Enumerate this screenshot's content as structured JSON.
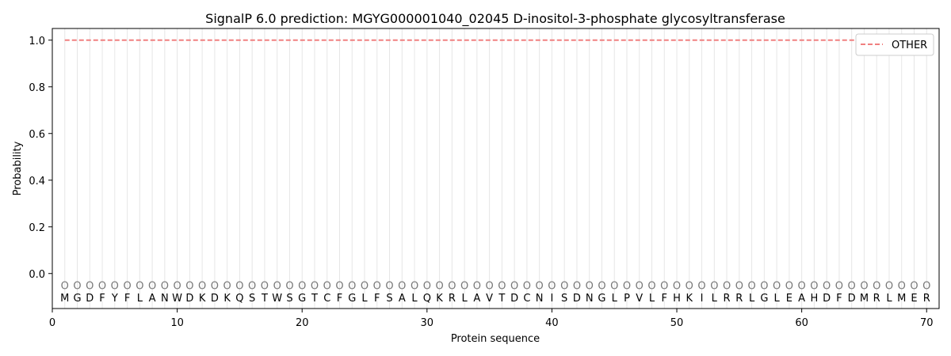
{
  "chart_data": {
    "type": "line",
    "title": "SignalP 6.0 prediction: MGYG000001040_02045 D-inositol-3-phosphate glycosyltransferase",
    "xlabel": "Protein sequence",
    "ylabel": "Probability",
    "xlim": [
      0,
      71
    ],
    "ylim": [
      -0.15,
      1.05
    ],
    "xticks": [
      0,
      10,
      20,
      30,
      40,
      50,
      60,
      70
    ],
    "yticks": [
      0.0,
      0.2,
      0.4,
      0.6,
      0.8,
      1.0
    ],
    "ytick_labels": [
      "0.0",
      "0.2",
      "0.4",
      "0.6",
      "0.8",
      "1.0"
    ],
    "sequence": [
      "M",
      "G",
      "D",
      "F",
      "Y",
      "F",
      "L",
      "A",
      "N",
      "W",
      "D",
      "K",
      "D",
      "K",
      "Q",
      "S",
      "T",
      "W",
      "S",
      "G",
      "T",
      "C",
      "F",
      "G",
      "L",
      "F",
      "S",
      "A",
      "L",
      "Q",
      "K",
      "R",
      "L",
      "A",
      "V",
      "T",
      "D",
      "C",
      "N",
      "I",
      "S",
      "D",
      "N",
      "G",
      "L",
      "P",
      "V",
      "L",
      "F",
      "H",
      "K",
      "I",
      "L",
      "R",
      "R",
      "L",
      "G",
      "L",
      "E",
      "A",
      "H",
      "D",
      "F",
      "D",
      "M",
      "R",
      "L",
      "M",
      "E",
      "R"
    ],
    "region_label": "O",
    "series": [
      {
        "name": "OTHER",
        "color": "#f08080",
        "style": "dashed",
        "x": [
          1,
          70
        ],
        "values": [
          1.0,
          1.0
        ]
      }
    ],
    "legend": {
      "position": "top-right",
      "entries": [
        "OTHER"
      ]
    },
    "grid": "vertical lines at each residue"
  }
}
